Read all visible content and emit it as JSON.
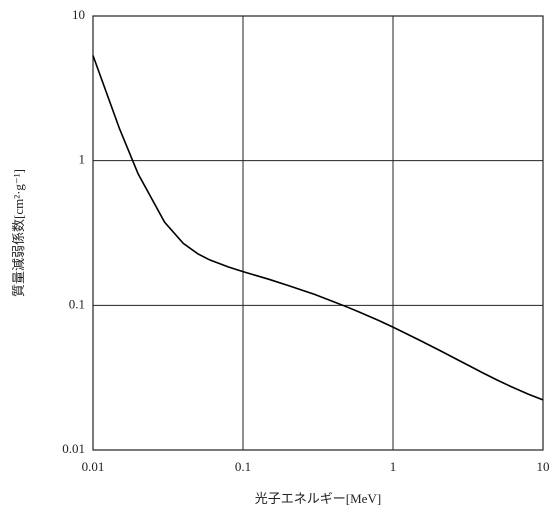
{
  "chart_data": {
    "type": "line",
    "xlabel": "光子エネルギー[MeV]",
    "ylabel": "質量減弱係数[cm²·g⁻¹]",
    "x": [
      0.01,
      0.015,
      0.02,
      0.03,
      0.04,
      0.05,
      0.06,
      0.08,
      0.1,
      0.15,
      0.2,
      0.3,
      0.4,
      0.5,
      0.6,
      0.8,
      1,
      1.5,
      2,
      3,
      4,
      5,
      6,
      8,
      10
    ],
    "values": [
      5.33,
      1.67,
      0.81,
      0.376,
      0.268,
      0.227,
      0.206,
      0.184,
      0.171,
      0.151,
      0.137,
      0.119,
      0.106,
      0.0969,
      0.0896,
      0.0787,
      0.0707,
      0.0575,
      0.0494,
      0.0397,
      0.034,
      0.0303,
      0.0277,
      0.0243,
      0.0222
    ],
    "color": "#000000",
    "xlim": [
      0.01,
      10
    ],
    "ylim": [
      0.01,
      10
    ],
    "xticks": [
      0.01,
      0.1,
      1,
      10
    ],
    "yticks": [
      0.01,
      0.1,
      1,
      10
    ],
    "xscale": "log",
    "yscale": "log",
    "grid": true
  }
}
